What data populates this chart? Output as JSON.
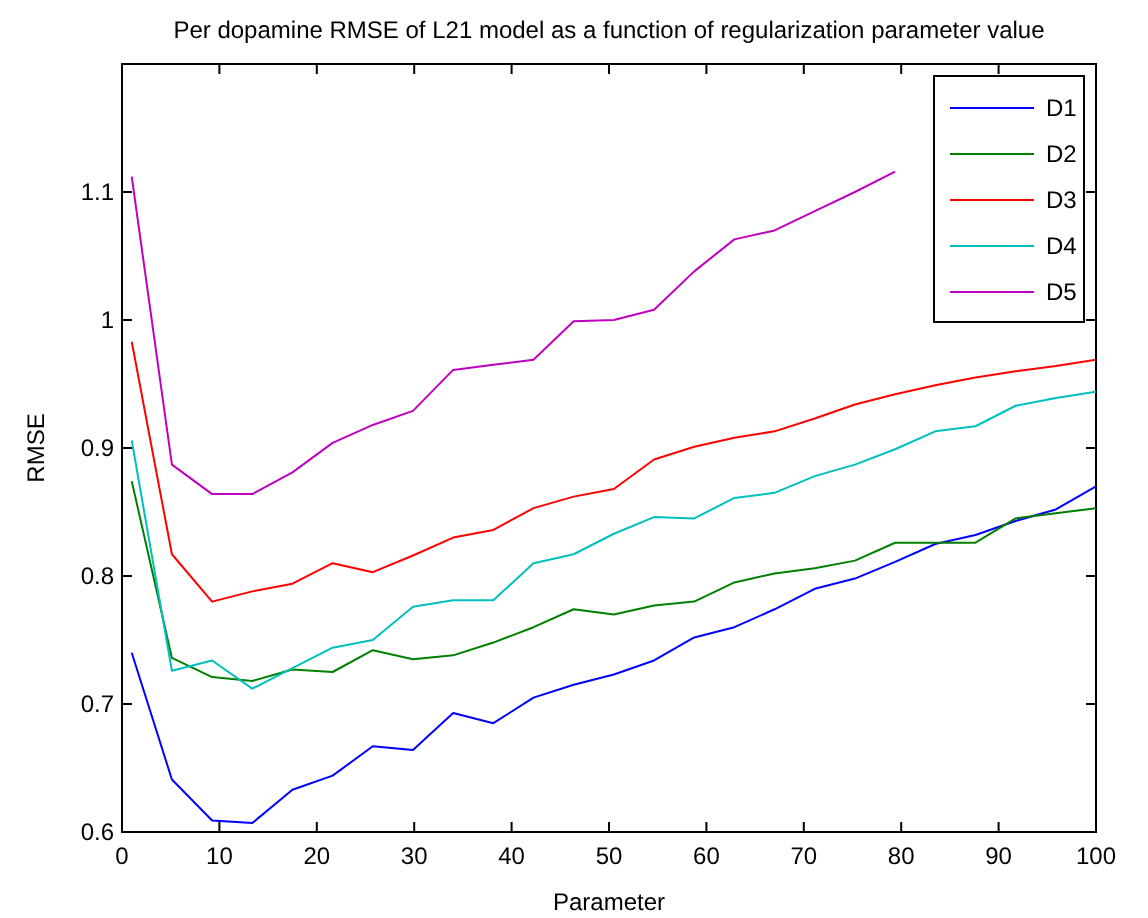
{
  "chart_data": {
    "type": "line",
    "title": "Per dopamine RMSE of L21 model as a function of regularization parameter value",
    "xlabel": "Parameter",
    "ylabel": "RMSE",
    "x": [
      1,
      5.125,
      9.25,
      13.375,
      17.5,
      21.625,
      25.75,
      29.875,
      34,
      38.125,
      42.25,
      46.375,
      50.5,
      54.625,
      58.75,
      62.875,
      67,
      71.125,
      75.25,
      79.375,
      83.5,
      87.625,
      91.75,
      95.875,
      100
    ],
    "series": [
      {
        "name": "D1",
        "color": "#0000ff",
        "values": [
          0.74,
          0.641,
          0.609,
          0.607,
          0.633,
          0.644,
          0.667,
          0.664,
          0.693,
          0.685,
          0.705,
          0.715,
          0.723,
          0.734,
          0.752,
          0.76,
          0.774,
          0.79,
          0.798,
          0.811,
          0.825,
          0.832,
          0.843,
          0.852,
          0.87
        ]
      },
      {
        "name": "D2",
        "color": "#008000",
        "values": [
          0.874,
          0.736,
          0.721,
          0.718,
          0.727,
          0.725,
          0.742,
          0.735,
          0.738,
          0.748,
          0.76,
          0.774,
          0.77,
          0.777,
          0.78,
          0.795,
          0.802,
          0.806,
          0.812,
          0.826,
          0.826,
          0.826,
          0.845,
          0.849,
          0.853
        ]
      },
      {
        "name": "D3",
        "color": "#ff0000",
        "values": [
          0.983,
          0.817,
          0.78,
          0.788,
          0.794,
          0.81,
          0.803,
          0.816,
          0.83,
          0.836,
          0.853,
          0.862,
          0.868,
          0.891,
          0.901,
          0.908,
          0.913,
          0.923,
          0.934,
          0.942,
          0.949,
          0.955,
          0.96,
          0.964,
          0.969
        ]
      },
      {
        "name": "D4",
        "color": "#00bfbf",
        "values": [
          0.906,
          0.726,
          0.734,
          0.712,
          0.728,
          0.744,
          0.75,
          0.776,
          0.781,
          0.781,
          0.81,
          0.817,
          0.833,
          0.846,
          0.845,
          0.861,
          0.865,
          0.878,
          0.887,
          0.899,
          0.913,
          0.917,
          0.933,
          0.939,
          0.944
        ]
      },
      {
        "name": "D5",
        "color": "#bf00bf",
        "values": [
          1.112,
          0.887,
          0.864,
          0.864,
          0.881,
          0.904,
          0.918,
          0.929,
          0.961,
          0.965,
          0.969,
          0.999,
          1.0,
          1.008,
          1.038,
          1.063,
          1.07,
          1.085,
          1.1,
          1.116,
          null,
          null,
          null,
          null,
          null
        ]
      }
    ],
    "xlim": [
      0,
      100
    ],
    "xticks": [
      0,
      10,
      20,
      30,
      40,
      50,
      60,
      70,
      80,
      90,
      100
    ],
    "ylim": [
      0.6,
      1.2
    ],
    "yticks": [
      0.6,
      0.7,
      0.8,
      0.9,
      1,
      1.1
    ],
    "grid": false,
    "legend": "top right",
    "line_style": "solid"
  }
}
